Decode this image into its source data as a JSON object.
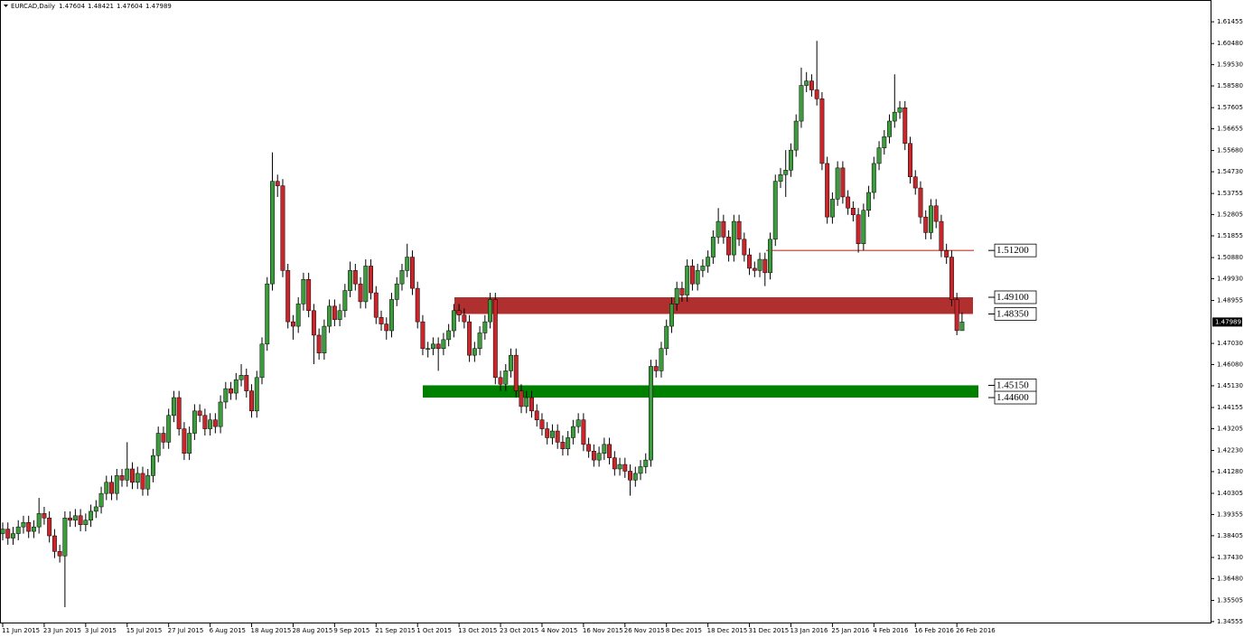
{
  "chart_data": {
    "type": "candlestick",
    "title": "EURCAD,Daily",
    "categories": [
      "11 Jun 2015",
      null,
      null,
      null,
      null,
      null,
      null,
      null,
      "23 Jun 2015",
      null,
      null,
      null,
      null,
      null,
      null,
      null,
      "3 Jul 2015",
      null,
      null,
      null,
      null,
      null,
      null,
      null,
      "15 Jul 2015",
      null,
      null,
      null,
      null,
      null,
      null,
      null,
      "27 Jul 2015",
      null,
      null,
      null,
      null,
      null,
      null,
      null,
      "6 Aug 2015",
      null,
      null,
      null,
      null,
      null,
      null,
      null,
      "18 Aug 2015",
      null,
      null,
      null,
      null,
      null,
      null,
      null,
      "28 Aug 2015",
      null,
      null,
      null,
      null,
      null,
      null,
      null,
      "9 Sep 2015",
      null,
      null,
      null,
      null,
      null,
      null,
      null,
      "21 Sep 2015",
      null,
      null,
      null,
      null,
      null,
      null,
      null,
      "1 Oct 2015",
      null,
      null,
      null,
      null,
      null,
      null,
      null,
      "13 Oct 2015",
      null,
      null,
      null,
      null,
      null,
      null,
      null,
      "23 Oct 2015",
      null,
      null,
      null,
      null,
      null,
      null,
      null,
      "4 Nov 2015",
      null,
      null,
      null,
      null,
      null,
      null,
      null,
      "16 Nov 2015",
      null,
      null,
      null,
      null,
      null,
      null,
      null,
      "26 Nov 2015",
      null,
      null,
      null,
      null,
      null,
      null,
      null,
      "8 Dec 2015",
      null,
      null,
      null,
      null,
      null,
      null,
      null,
      "18 Dec 2015",
      null,
      null,
      null,
      null,
      null,
      null,
      null,
      "31 Dec 2015",
      null,
      null,
      null,
      null,
      null,
      null,
      null,
      "13 Jan 2016",
      null,
      null,
      null,
      null,
      null,
      null,
      null,
      "25 Jan 2016",
      null,
      null,
      null,
      null,
      null,
      null,
      null,
      "4 Feb 2016",
      null,
      null,
      null,
      null,
      null,
      null,
      null,
      "16 Feb 2016",
      null,
      null,
      null,
      null,
      null,
      null,
      null,
      "26 Feb 2016",
      null
    ],
    "open": [
      1.385,
      1.387,
      1.383,
      1.385,
      1.388,
      1.39,
      1.386,
      1.388,
      1.394,
      1.392,
      1.384,
      1.377,
      1.375,
      1.392,
      1.391,
      1.393,
      1.389,
      1.391,
      1.395,
      1.397,
      1.403,
      1.408,
      1.403,
      1.411,
      1.409,
      1.414,
      1.408,
      1.412,
      1.405,
      1.411,
      1.42,
      1.43,
      1.426,
      1.438,
      1.446,
      1.432,
      1.421,
      1.43,
      1.44,
      1.438,
      1.432,
      1.436,
      1.433,
      1.444,
      1.45,
      1.448,
      1.454,
      1.456,
      1.449,
      1.44,
      1.455,
      1.47,
      1.497,
      1.543,
      1.541,
      1.503,
      1.48,
      1.478,
      1.488,
      1.499,
      1.485,
      1.474,
      1.466,
      1.478,
      1.487,
      1.481,
      1.485,
      1.494,
      1.503,
      1.497,
      1.489,
      1.505,
      1.493,
      1.482,
      1.479,
      1.476,
      1.49,
      1.497,
      1.503,
      1.509,
      1.495,
      1.48,
      1.468,
      1.468,
      1.47,
      1.468,
      1.472,
      1.476,
      1.485,
      1.483,
      1.48,
      1.465,
      1.468,
      1.475,
      1.48,
      1.49,
      1.455,
      1.452,
      1.458,
      1.465,
      1.449,
      1.442,
      1.446,
      1.44,
      1.436,
      1.432,
      1.428,
      1.431,
      1.426,
      1.423,
      1.428,
      1.433,
      1.436,
      1.425,
      1.422,
      1.418,
      1.421,
      1.425,
      1.419,
      1.414,
      1.416,
      1.413,
      1.409,
      1.412,
      1.415,
      1.418,
      1.46,
      1.458,
      1.468,
      1.478,
      1.488,
      1.495,
      1.492,
      1.505,
      1.497,
      1.503,
      1.505,
      1.509,
      1.518,
      1.525,
      1.518,
      1.51,
      1.525,
      1.517,
      1.51,
      1.504,
      1.503,
      1.508,
      1.502,
      1.517,
      1.543,
      1.546,
      1.548,
      1.557,
      1.57,
      1.586,
      1.588,
      1.584,
      1.58,
      1.551,
      1.527,
      1.535,
      1.549,
      1.536,
      1.531,
      1.528,
      1.515,
      1.53,
      1.538,
      1.551,
      1.558,
      1.563,
      1.57,
      1.574,
      1.576,
      1.56,
      1.545,
      1.54,
      1.527,
      1.52,
      1.532,
      1.525,
      1.512,
      1.509,
      1.49,
      1.47604
    ],
    "high": [
      1.39,
      1.39,
      1.388,
      1.391,
      1.393,
      1.393,
      1.391,
      1.401,
      1.397,
      1.395,
      1.387,
      1.38,
      1.395,
      1.395,
      1.396,
      1.396,
      1.394,
      1.398,
      1.4,
      1.406,
      1.411,
      1.411,
      1.414,
      1.414,
      1.426,
      1.417,
      1.415,
      1.415,
      1.414,
      1.423,
      1.433,
      1.433,
      1.441,
      1.449,
      1.449,
      1.435,
      1.433,
      1.443,
      1.443,
      1.441,
      1.439,
      1.439,
      1.447,
      1.453,
      1.453,
      1.457,
      1.461,
      1.459,
      1.452,
      1.458,
      1.473,
      1.5,
      1.556,
      1.546,
      1.544,
      1.506,
      1.483,
      1.491,
      1.502,
      1.502,
      1.488,
      1.477,
      1.481,
      1.49,
      1.49,
      1.488,
      1.497,
      1.507,
      1.506,
      1.5,
      1.508,
      1.508,
      1.496,
      1.485,
      1.482,
      1.493,
      1.5,
      1.506,
      1.515,
      1.512,
      1.498,
      1.483,
      1.471,
      1.473,
      1.473,
      1.475,
      1.479,
      1.488,
      1.488,
      1.486,
      1.483,
      1.471,
      1.478,
      1.483,
      1.493,
      1.493,
      1.458,
      1.461,
      1.468,
      1.468,
      1.452,
      1.449,
      1.449,
      1.443,
      1.439,
      1.435,
      1.434,
      1.434,
      1.429,
      1.431,
      1.436,
      1.439,
      1.439,
      1.428,
      1.425,
      1.424,
      1.428,
      1.428,
      1.422,
      1.419,
      1.419,
      1.416,
      1.415,
      1.418,
      1.421,
      1.463,
      1.463,
      1.471,
      1.481,
      1.491,
      1.498,
      1.498,
      1.508,
      1.508,
      1.506,
      1.508,
      1.512,
      1.521,
      1.531,
      1.528,
      1.521,
      1.528,
      1.528,
      1.52,
      1.513,
      1.507,
      1.511,
      1.511,
      1.52,
      1.546,
      1.549,
      1.557,
      1.56,
      1.573,
      1.594,
      1.592,
      1.591,
      1.606,
      1.583,
      1.554,
      1.538,
      1.552,
      1.552,
      1.539,
      1.534,
      1.531,
      1.533,
      1.541,
      1.554,
      1.561,
      1.566,
      1.573,
      1.591,
      1.579,
      1.579,
      1.563,
      1.548,
      1.543,
      1.53,
      1.535,
      1.535,
      1.528,
      1.515,
      1.512,
      1.493,
      1.48421
    ],
    "low": [
      1.382,
      1.38,
      1.38,
      1.382,
      1.385,
      1.383,
      1.383,
      1.385,
      1.389,
      1.381,
      1.374,
      1.372,
      1.352,
      1.388,
      1.388,
      1.386,
      1.386,
      1.388,
      1.392,
      1.394,
      1.4,
      1.4,
      1.4,
      1.406,
      1.406,
      1.405,
      1.405,
      1.402,
      1.402,
      1.408,
      1.417,
      1.423,
      1.423,
      1.435,
      1.429,
      1.418,
      1.418,
      1.427,
      1.435,
      1.429,
      1.429,
      1.43,
      1.43,
      1.441,
      1.445,
      1.445,
      1.451,
      1.446,
      1.437,
      1.437,
      1.452,
      1.467,
      1.494,
      1.536,
      1.5,
      1.477,
      1.472,
      1.475,
      1.485,
      1.482,
      1.461,
      1.463,
      1.463,
      1.475,
      1.478,
      1.478,
      1.482,
      1.491,
      1.494,
      1.486,
      1.486,
      1.49,
      1.479,
      1.476,
      1.472,
      1.473,
      1.487,
      1.494,
      1.5,
      1.492,
      1.477,
      1.465,
      1.464,
      1.465,
      1.458,
      1.465,
      1.469,
      1.473,
      1.48,
      1.477,
      1.462,
      1.462,
      1.465,
      1.472,
      1.477,
      1.452,
      1.449,
      1.449,
      1.455,
      1.446,
      1.439,
      1.439,
      1.437,
      1.433,
      1.429,
      1.425,
      1.425,
      1.423,
      1.42,
      1.42,
      1.425,
      1.43,
      1.422,
      1.419,
      1.415,
      1.415,
      1.418,
      1.416,
      1.411,
      1.411,
      1.41,
      1.402,
      1.406,
      1.409,
      1.412,
      1.415,
      1.455,
      1.455,
      1.465,
      1.475,
      1.485,
      1.489,
      1.489,
      1.494,
      1.494,
      1.5,
      1.502,
      1.506,
      1.515,
      1.515,
      1.507,
      1.507,
      1.514,
      1.507,
      1.501,
      1.5,
      1.5,
      1.496,
      1.499,
      1.514,
      1.54,
      1.536,
      1.545,
      1.554,
      1.567,
      1.583,
      1.581,
      1.577,
      1.548,
      1.524,
      1.524,
      1.532,
      1.533,
      1.528,
      1.525,
      1.511,
      1.512,
      1.527,
      1.535,
      1.548,
      1.555,
      1.56,
      1.567,
      1.571,
      1.557,
      1.542,
      1.537,
      1.524,
      1.517,
      1.517,
      1.522,
      1.509,
      1.506,
      1.487,
      1.474,
      1.47604
    ],
    "close": [
      1.387,
      1.383,
      1.385,
      1.388,
      1.39,
      1.386,
      1.388,
      1.394,
      1.392,
      1.384,
      1.377,
      1.375,
      1.392,
      1.391,
      1.393,
      1.389,
      1.391,
      1.395,
      1.397,
      1.403,
      1.408,
      1.403,
      1.411,
      1.409,
      1.414,
      1.408,
      1.412,
      1.405,
      1.411,
      1.42,
      1.43,
      1.426,
      1.438,
      1.446,
      1.432,
      1.421,
      1.43,
      1.44,
      1.438,
      1.432,
      1.436,
      1.433,
      1.444,
      1.45,
      1.448,
      1.454,
      1.456,
      1.449,
      1.44,
      1.455,
      1.47,
      1.497,
      1.543,
      1.541,
      1.503,
      1.48,
      1.478,
      1.488,
      1.499,
      1.485,
      1.474,
      1.466,
      1.478,
      1.487,
      1.481,
      1.485,
      1.494,
      1.503,
      1.497,
      1.489,
      1.505,
      1.493,
      1.482,
      1.479,
      1.476,
      1.49,
      1.497,
      1.503,
      1.509,
      1.495,
      1.48,
      1.468,
      1.468,
      1.47,
      1.468,
      1.472,
      1.476,
      1.485,
      1.483,
      1.48,
      1.465,
      1.468,
      1.475,
      1.48,
      1.49,
      1.455,
      1.452,
      1.458,
      1.465,
      1.449,
      1.442,
      1.446,
      1.44,
      1.436,
      1.432,
      1.428,
      1.431,
      1.426,
      1.423,
      1.428,
      1.433,
      1.436,
      1.425,
      1.422,
      1.418,
      1.421,
      1.425,
      1.419,
      1.414,
      1.416,
      1.413,
      1.409,
      1.412,
      1.415,
      1.418,
      1.46,
      1.458,
      1.468,
      1.478,
      1.488,
      1.495,
      1.492,
      1.505,
      1.497,
      1.503,
      1.505,
      1.509,
      1.518,
      1.525,
      1.518,
      1.51,
      1.525,
      1.517,
      1.51,
      1.504,
      1.503,
      1.508,
      1.502,
      1.517,
      1.543,
      1.546,
      1.548,
      1.557,
      1.57,
      1.586,
      1.588,
      1.584,
      1.58,
      1.551,
      1.527,
      1.535,
      1.549,
      1.536,
      1.531,
      1.528,
      1.515,
      1.53,
      1.538,
      1.551,
      1.558,
      1.563,
      1.57,
      1.574,
      1.576,
      1.56,
      1.545,
      1.54,
      1.527,
      1.52,
      1.532,
      1.525,
      1.512,
      1.509,
      1.49,
      1.47604,
      1.47989
    ],
    "up_color": "#3c9b3c",
    "down_color": "#c8262b",
    "ylim": [
      1.3447,
      1.6227
    ],
    "yticks": [
      {
        "value": 1.61455,
        "label": "1.61455"
      },
      {
        "value": 1.6048,
        "label": "1.60480"
      },
      {
        "value": 1.5953,
        "label": "1.59530"
      },
      {
        "value": 1.5858,
        "label": "1.58580"
      },
      {
        "value": 1.57605,
        "label": "1.57605"
      },
      {
        "value": 1.56655,
        "label": "1.56655"
      },
      {
        "value": 1.5568,
        "label": "1.55680"
      },
      {
        "value": 1.5473,
        "label": "1.54730"
      },
      {
        "value": 1.53755,
        "label": "1.53755"
      },
      {
        "value": 1.52805,
        "label": "1.52805"
      },
      {
        "value": 1.51855,
        "label": "1.51855"
      },
      {
        "value": 1.5088,
        "label": "1.50880"
      },
      {
        "value": 1.4993,
        "label": "1.49930"
      },
      {
        "value": 1.48955,
        "label": "1.48955"
      },
      {
        "value": 1.4703,
        "label": "1.47030"
      },
      {
        "value": 1.4608,
        "label": "1.46080"
      },
      {
        "value": 1.4513,
        "label": "1.45130"
      },
      {
        "value": 1.44155,
        "label": "1.44155"
      },
      {
        "value": 1.43205,
        "label": "1.43205"
      },
      {
        "value": 1.4223,
        "label": "1.42230"
      },
      {
        "value": 1.4128,
        "label": "1.41280"
      },
      {
        "value": 1.40305,
        "label": "1.40305"
      },
      {
        "value": 1.39355,
        "label": "1.39355"
      },
      {
        "value": 1.38405,
        "label": "1.38405"
      },
      {
        "value": 1.3743,
        "label": "1.37430"
      },
      {
        "value": 1.3648,
        "label": "1.36480"
      },
      {
        "value": 1.35505,
        "label": "1.35505"
      },
      {
        "value": 1.34555,
        "label": "1.34555"
      }
    ],
    "resistance_line": {
      "value": 1.512,
      "label": "1.51200",
      "color": "#c0392b"
    },
    "zones": [
      {
        "top": {
          "value": 1.491,
          "label": "1.49100"
        },
        "bottom": {
          "value": 1.4835,
          "label": "1.48350"
        },
        "color": "#b03030"
      },
      {
        "top": {
          "value": 1.4515,
          "label": "1.45150"
        },
        "bottom": {
          "value": 1.446,
          "label": "1.44600"
        },
        "color": "#008000"
      }
    ]
  }
}
